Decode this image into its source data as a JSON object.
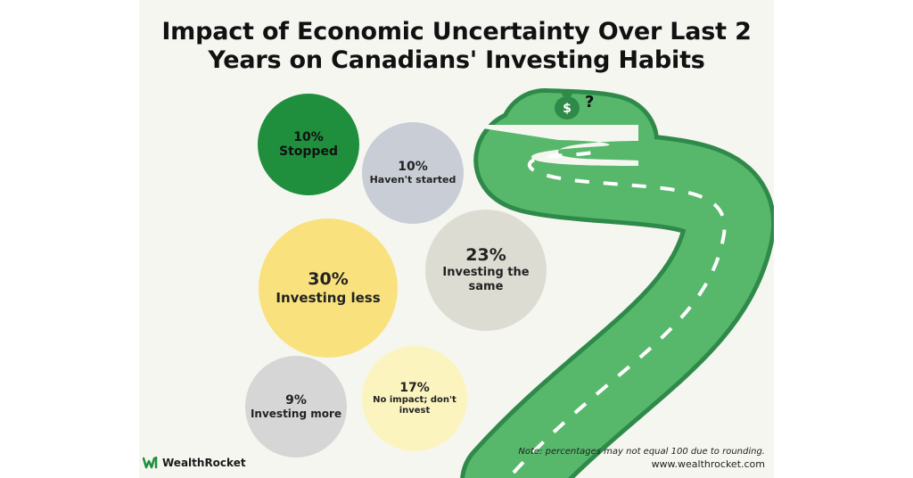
{
  "title_lines": [
    "Impact of Economic Uncertainty Over Last 2",
    "Years on Canadians' Investing Habits"
  ],
  "chart_data": {
    "type": "bubble",
    "title": "Impact of Economic Uncertainty Over Last 2 Years on Canadians' Investing Habits",
    "categories": [
      "Stopped",
      "Haven't started",
      "Investing less",
      "Investing the same",
      "Investing more",
      "No impact; don't invest"
    ],
    "values": [
      10,
      10,
      30,
      23,
      9,
      17
    ],
    "labels": [
      "10%",
      "10%",
      "30%",
      "23%",
      "9%",
      "17%"
    ],
    "unit": "%",
    "colors": [
      "#1f8f3e",
      "#c9ced6",
      "#f9e27d",
      "#dcdcd2",
      "#d6d6d6",
      "#fbf4bf"
    ]
  },
  "footer": {
    "note": "Note: percentages may not equal 100 due to rounding.",
    "website": "www.wealthrocket.com",
    "brand": "WealthRocket"
  },
  "icons": {
    "money_bag": "money-bag-icon",
    "question": "question-mark-icon",
    "logo": "wealthrocket-logo-icon"
  },
  "colors": {
    "road": "#54b56a",
    "road_edge": "#2f8a4a",
    "road_dash": "#ffffff",
    "background": "#f6f6f1"
  }
}
